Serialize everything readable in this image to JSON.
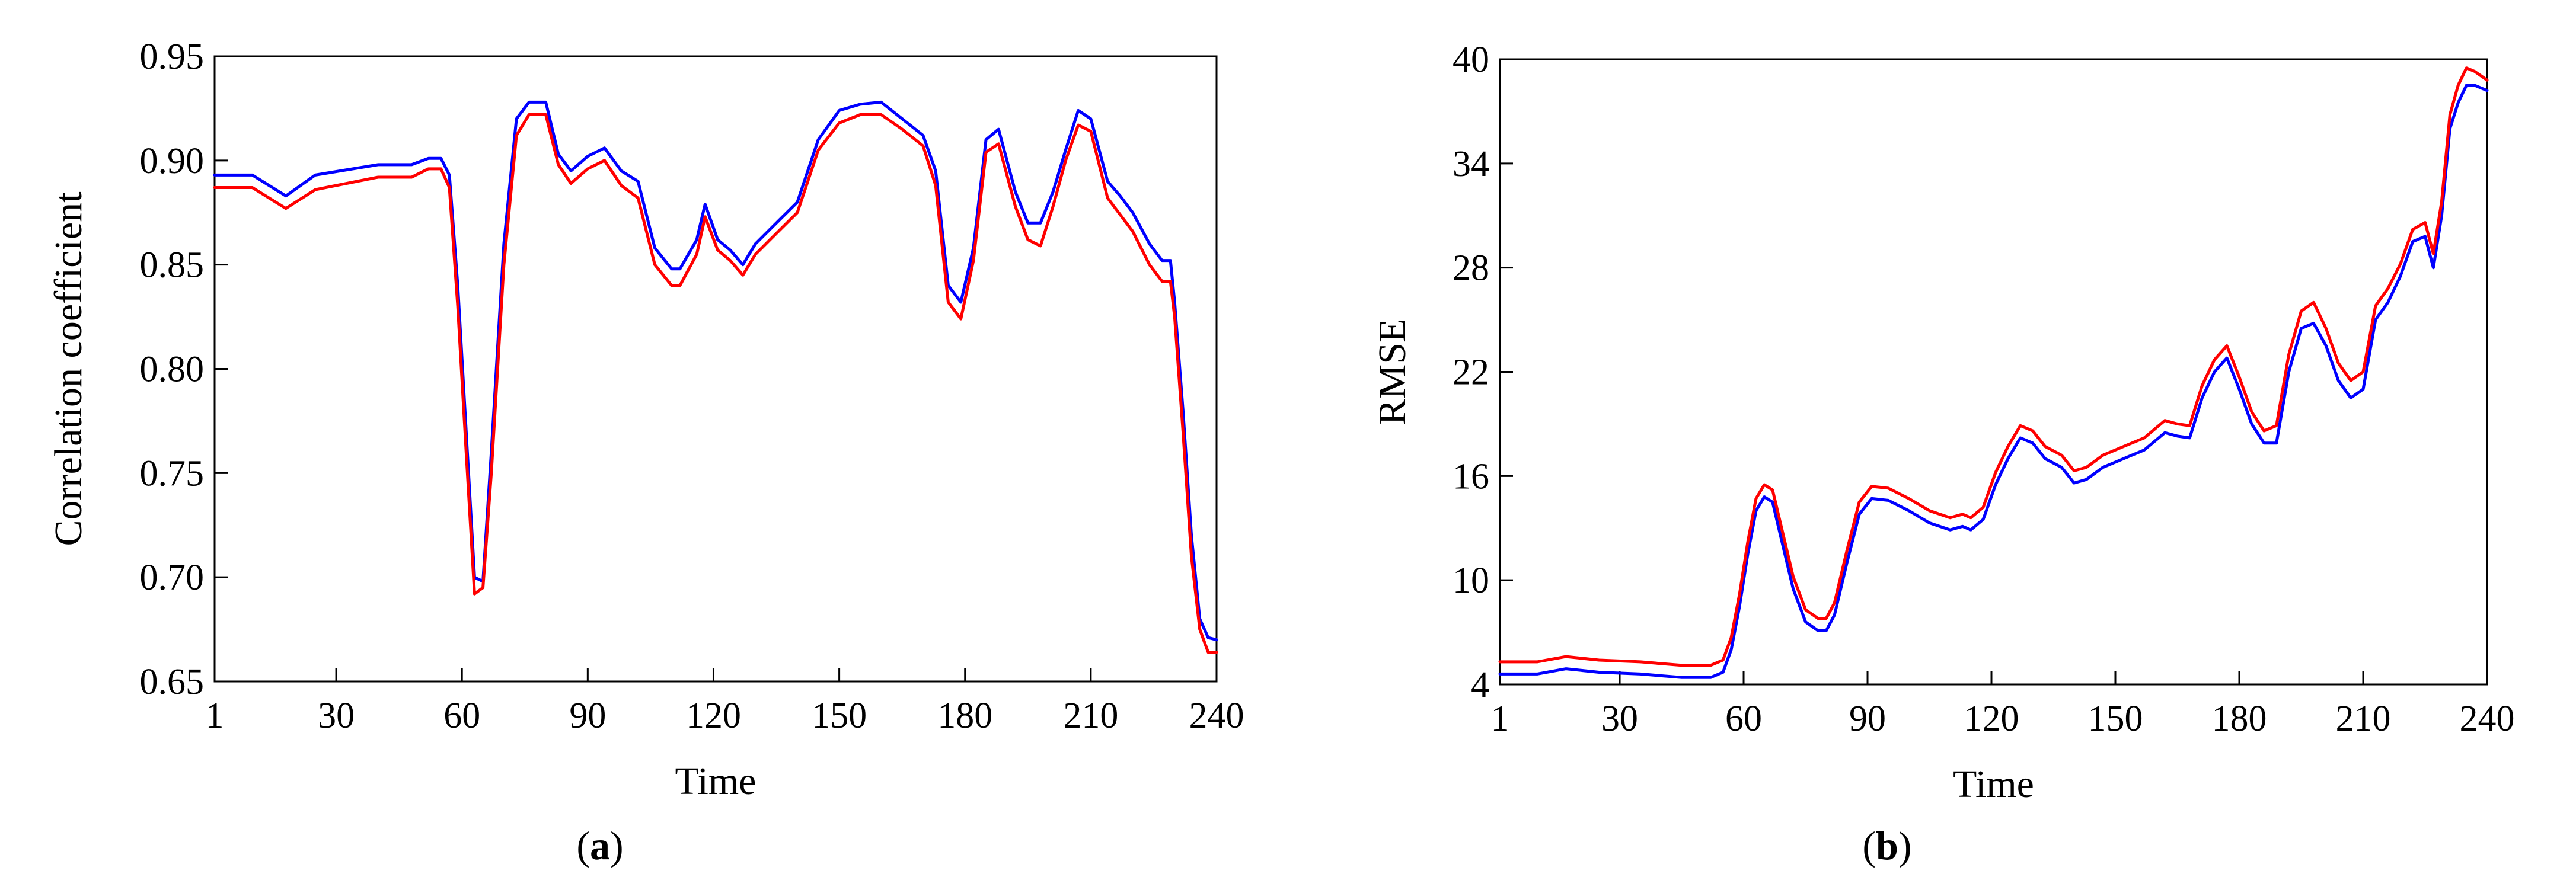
{
  "chart_data": [
    {
      "panel_label": "a",
      "type": "line",
      "title": "",
      "xlabel": "Time",
      "ylabel": "Correlation coefficient",
      "xlim": [
        1,
        240
      ],
      "ylim": [
        0.65,
        0.95
      ],
      "x_ticks": [
        1,
        30,
        60,
        90,
        120,
        150,
        180,
        210,
        240
      ],
      "y_ticks": [
        0.65,
        0.7,
        0.75,
        0.8,
        0.85,
        0.9,
        0.95
      ],
      "y_tick_labels": [
        "0.65",
        "0.70",
        "0.75",
        "0.80",
        "0.85",
        "0.90",
        "0.95"
      ],
      "x": [
        1,
        10,
        18,
        25,
        40,
        48,
        52,
        55,
        57,
        59,
        61,
        63,
        65,
        67,
        70,
        73,
        76,
        80,
        83,
        86,
        90,
        94,
        98,
        102,
        106,
        110,
        112,
        116,
        118,
        121,
        124,
        127,
        130,
        135,
        140,
        145,
        150,
        155,
        160,
        165,
        170,
        173,
        176,
        179,
        182,
        185,
        188,
        192,
        195,
        198,
        201,
        204,
        207,
        210,
        214,
        217,
        220,
        224,
        227,
        229,
        230,
        232,
        234,
        236,
        238,
        240
      ],
      "series": [
        {
          "color": "#0000ff",
          "values": [
            0.893,
            0.893,
            0.883,
            0.893,
            0.898,
            0.898,
            0.901,
            0.901,
            0.893,
            0.84,
            0.77,
            0.7,
            0.698,
            0.76,
            0.86,
            0.92,
            0.928,
            0.928,
            0.903,
            0.895,
            0.902,
            0.906,
            0.895,
            0.89,
            0.858,
            0.848,
            0.848,
            0.862,
            0.879,
            0.862,
            0.857,
            0.85,
            0.86,
            0.87,
            0.88,
            0.91,
            0.924,
            0.927,
            0.928,
            0.92,
            0.912,
            0.895,
            0.84,
            0.832,
            0.858,
            0.91,
            0.915,
            0.885,
            0.87,
            0.87,
            0.885,
            0.905,
            0.924,
            0.92,
            0.89,
            0.883,
            0.875,
            0.86,
            0.852,
            0.852,
            0.832,
            0.78,
            0.72,
            0.68,
            0.671,
            0.67
          ]
        },
        {
          "color": "#ff0000",
          "values": [
            0.887,
            0.887,
            0.877,
            0.886,
            0.892,
            0.892,
            0.896,
            0.896,
            0.887,
            0.83,
            0.76,
            0.692,
            0.695,
            0.75,
            0.85,
            0.912,
            0.922,
            0.922,
            0.898,
            0.889,
            0.896,
            0.9,
            0.888,
            0.882,
            0.85,
            0.84,
            0.84,
            0.855,
            0.873,
            0.857,
            0.852,
            0.845,
            0.855,
            0.865,
            0.875,
            0.905,
            0.918,
            0.922,
            0.922,
            0.915,
            0.907,
            0.888,
            0.832,
            0.824,
            0.852,
            0.904,
            0.908,
            0.878,
            0.862,
            0.859,
            0.878,
            0.9,
            0.917,
            0.914,
            0.882,
            0.874,
            0.866,
            0.85,
            0.842,
            0.842,
            0.825,
            0.77,
            0.71,
            0.675,
            0.664,
            0.664
          ]
        }
      ]
    },
    {
      "panel_label": "b",
      "type": "line",
      "title": "",
      "xlabel": "Time",
      "ylabel": "RMSE",
      "xlim": [
        1,
        240
      ],
      "ylim": [
        4,
        40
      ],
      "x_ticks": [
        1,
        30,
        60,
        90,
        120,
        150,
        180,
        210,
        240
      ],
      "y_ticks": [
        4,
        10,
        16,
        22,
        28,
        34,
        40
      ],
      "y_tick_labels": [
        "4",
        "10",
        "16",
        "22",
        "28",
        "34",
        "40"
      ],
      "x": [
        1,
        10,
        17,
        25,
        35,
        45,
        52,
        55,
        57,
        59,
        61,
        63,
        65,
        67,
        69,
        72,
        75,
        78,
        80,
        82,
        85,
        88,
        91,
        95,
        100,
        105,
        110,
        113,
        115,
        118,
        121,
        124,
        127,
        130,
        133,
        137,
        140,
        143,
        147,
        152,
        157,
        162,
        165,
        168,
        171,
        174,
        177,
        180,
        183,
        186,
        189,
        192,
        195,
        198,
        201,
        204,
        207,
        210,
        213,
        216,
        219,
        222,
        225,
        227,
        229,
        231,
        233,
        235,
        237,
        240
      ],
      "series": [
        {
          "color": "#0000ff",
          "values": [
            4.6,
            4.6,
            4.9,
            4.7,
            4.6,
            4.4,
            4.4,
            4.7,
            6.0,
            8.5,
            11.5,
            14.0,
            14.8,
            14.5,
            12.5,
            9.5,
            7.6,
            7.1,
            7.1,
            8.0,
            11.0,
            13.8,
            14.7,
            14.6,
            14.0,
            13.3,
            12.9,
            13.1,
            12.9,
            13.5,
            15.5,
            17.0,
            18.2,
            17.9,
            17.0,
            16.5,
            15.6,
            15.8,
            16.5,
            17.0,
            17.5,
            18.5,
            18.3,
            18.2,
            20.5,
            22.0,
            22.8,
            21.0,
            19.0,
            17.9,
            17.9,
            22.0,
            24.5,
            24.8,
            23.5,
            21.5,
            20.5,
            21.0,
            25.0,
            26.0,
            27.5,
            29.5,
            29.8,
            28.0,
            31.0,
            36.0,
            37.5,
            38.5,
            38.5,
            38.2
          ]
        },
        {
          "color": "#ff0000",
          "values": [
            5.3,
            5.3,
            5.6,
            5.4,
            5.3,
            5.1,
            5.1,
            5.4,
            6.7,
            9.2,
            12.2,
            14.7,
            15.5,
            15.2,
            13.2,
            10.2,
            8.3,
            7.8,
            7.8,
            8.7,
            11.7,
            14.5,
            15.4,
            15.3,
            14.7,
            14.0,
            13.6,
            13.8,
            13.6,
            14.2,
            16.2,
            17.7,
            18.9,
            18.6,
            17.7,
            17.2,
            16.3,
            16.5,
            17.2,
            17.7,
            18.2,
            19.2,
            19.0,
            18.9,
            21.2,
            22.7,
            23.5,
            21.7,
            19.7,
            18.6,
            18.9,
            23.0,
            25.5,
            26.0,
            24.5,
            22.5,
            21.5,
            22.0,
            25.8,
            26.8,
            28.2,
            30.2,
            30.6,
            28.8,
            31.8,
            36.8,
            38.5,
            39.5,
            39.3,
            38.8
          ]
        }
      ]
    }
  ]
}
